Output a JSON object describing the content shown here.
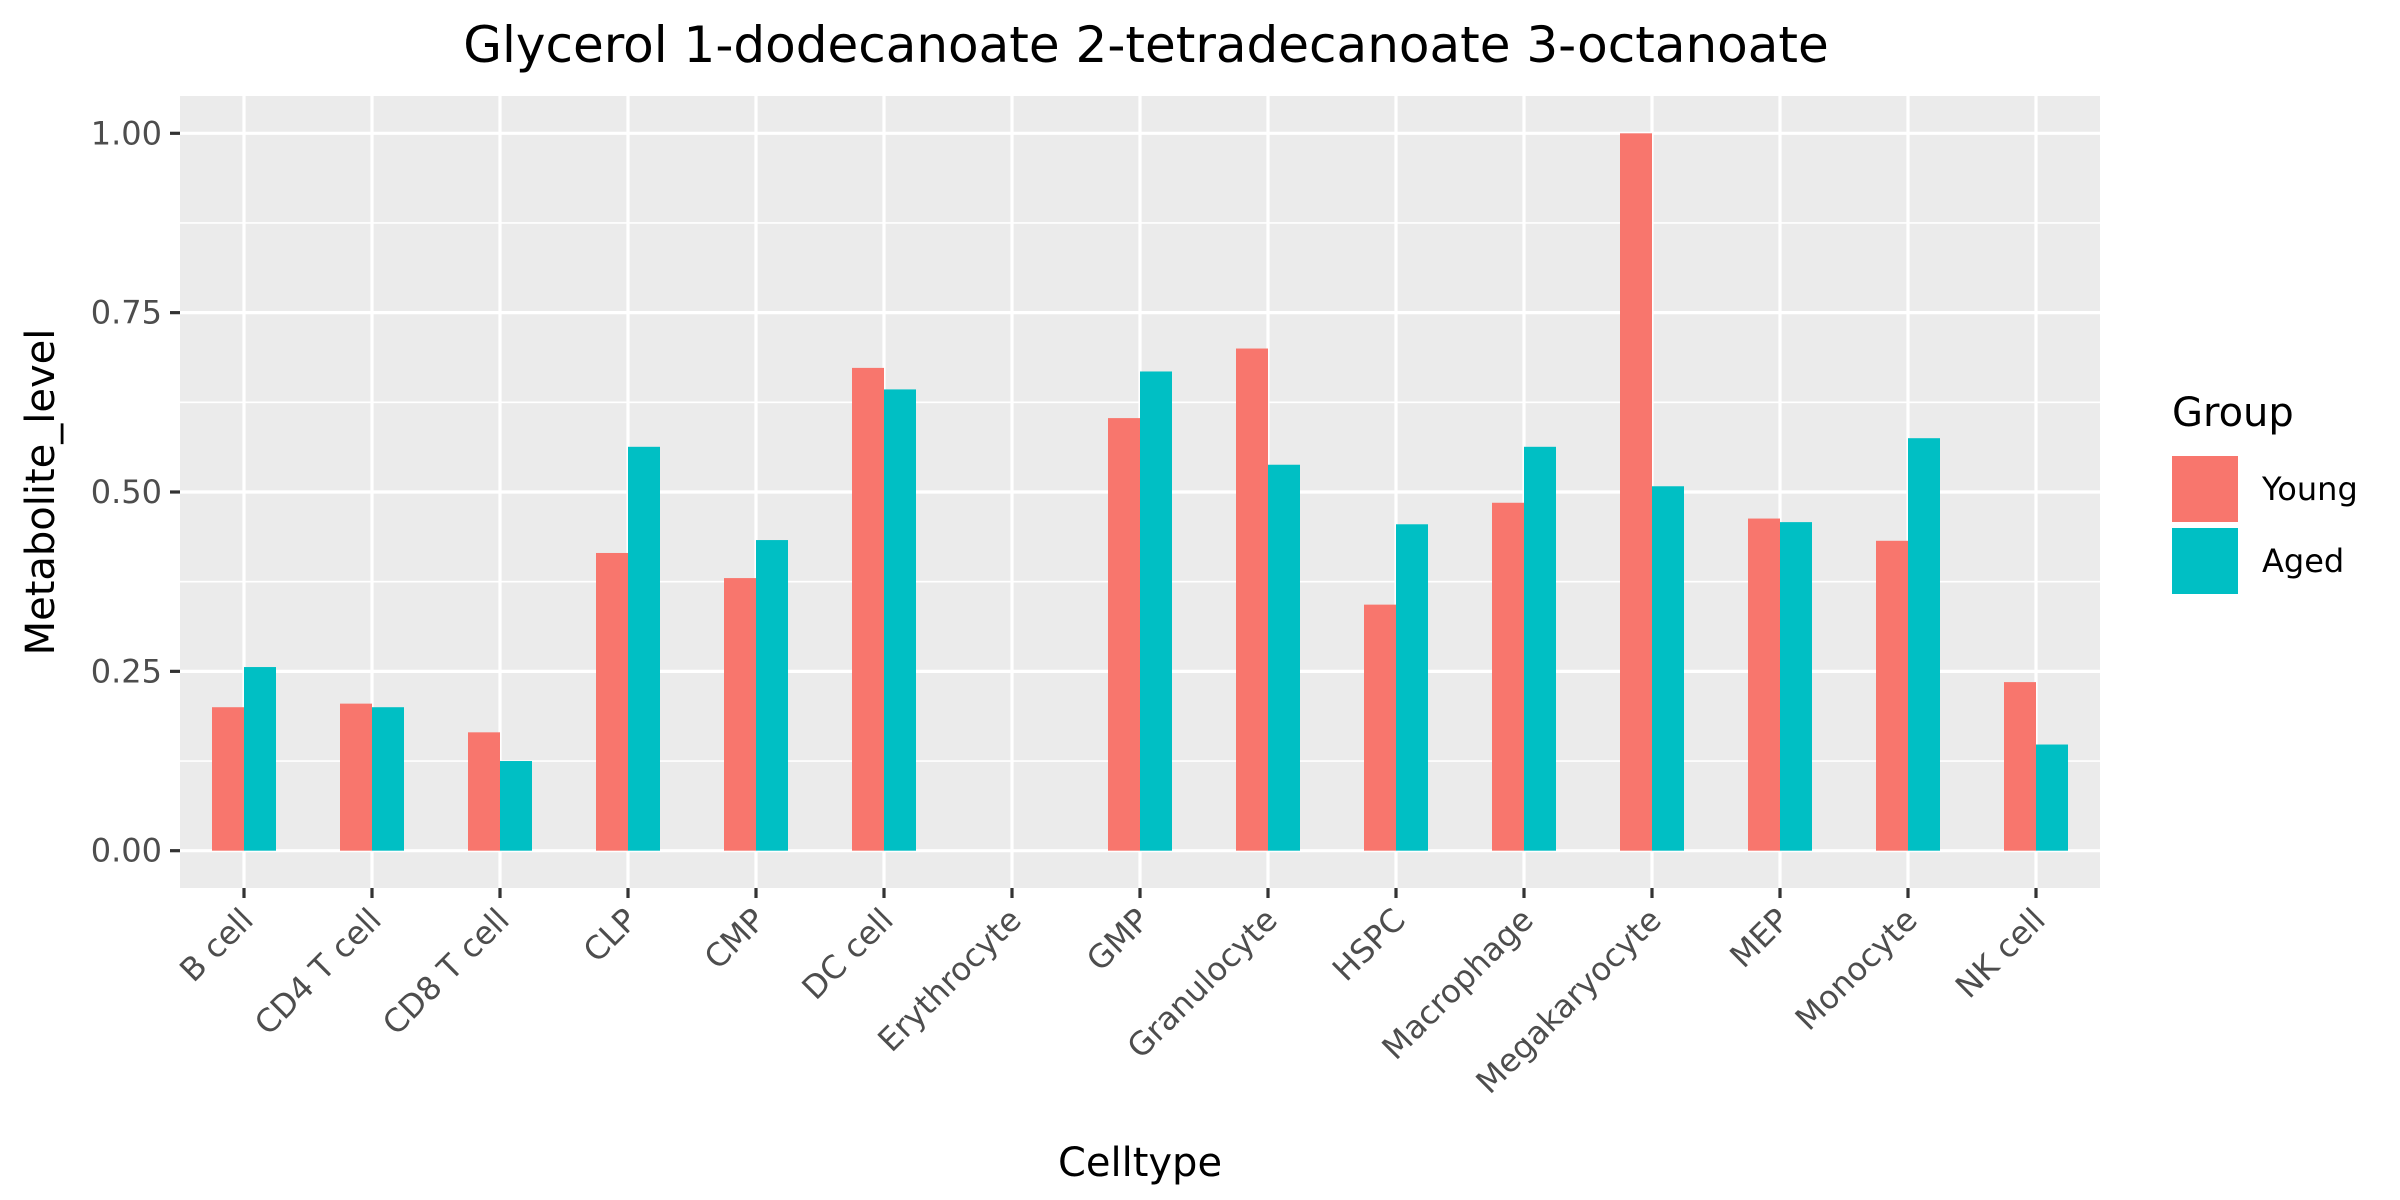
{
  "chart_data": {
    "type": "bar",
    "title": "Glycerol 1-dodecanoate 2-tetradecanoate 3-octanoate",
    "xlabel": "Celltype",
    "ylabel": "Metabolite_level",
    "categories": [
      "B cell",
      "CD4 T cell",
      "CD8 T cell",
      "CLP",
      "CMP",
      "DC cell",
      "Erythrocyte",
      "GMP",
      "Granulocyte",
      "HSPC",
      "Macrophage",
      "Megakaryocyte",
      "MEP",
      "Monocyte",
      "NK cell"
    ],
    "series": [
      {
        "name": "Young",
        "color": "#F8766D",
        "values": [
          0.2,
          0.205,
          0.165,
          0.415,
          0.38,
          0.673,
          0,
          0.603,
          0.7,
          0.343,
          0.485,
          1.0,
          0.463,
          0.432,
          0.235
        ]
      },
      {
        "name": "Aged",
        "color": "#00BFC4",
        "values": [
          0.256,
          0.2,
          0.125,
          0.563,
          0.433,
          0.643,
          0,
          0.668,
          0.538,
          0.455,
          0.563,
          0.508,
          0.458,
          0.575,
          0.148
        ]
      }
    ],
    "ylim": [
      -0.052,
      1.052
    ],
    "yticks": [
      0,
      0.25,
      0.5,
      0.75,
      1.0
    ],
    "ytick_labels": [
      "0.00",
      "0.25",
      "0.50",
      "0.75",
      "1.00"
    ],
    "legend": {
      "title": "Group",
      "position": "right"
    },
    "grid": true
  }
}
